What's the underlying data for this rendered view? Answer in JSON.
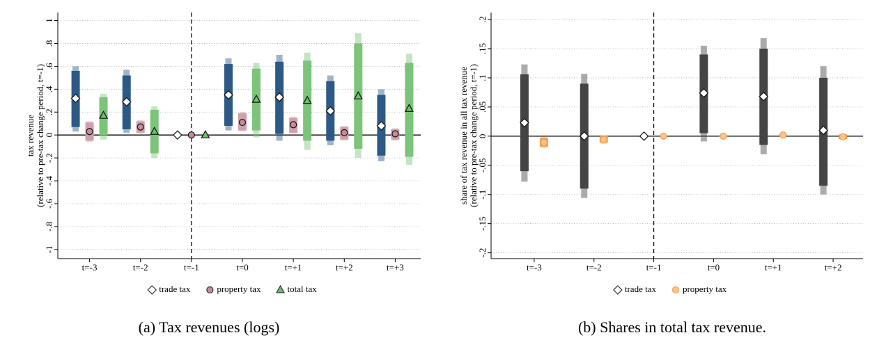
{
  "chart_data": [
    {
      "type": "errorbar",
      "caption": "(a) Tax revenues (logs)",
      "ylabel": [
        "tax revenue",
        "(relative to pre-tax change period, t=-1)"
      ],
      "categories": [
        "t=-3",
        "t=-2",
        "t=-1",
        "t=0",
        "t=+1",
        "t=+2",
        "t=+3"
      ],
      "ylim": [
        -1.08,
        1.07
      ],
      "yticks": [
        {
          "value": -1,
          "label": "-1"
        },
        {
          "value": -0.8,
          "label": "-.8"
        },
        {
          "value": -0.6,
          "label": "-.6"
        },
        {
          "value": -0.4,
          "label": "-.4"
        },
        {
          "value": -0.2,
          "label": "-.2"
        },
        0,
        {
          "value": 0.2,
          "label": ".2"
        },
        {
          "value": 0.4,
          "label": ".4"
        },
        {
          "value": 0.6,
          "label": ".6"
        },
        {
          "value": 0.8,
          "label": ".8"
        },
        1
      ],
      "grid": true,
      "hline": 0,
      "vline_index": 2,
      "series": [
        {
          "name": "trade tax",
          "color": "#2c5985",
          "marker": "diamond",
          "marker_fill": "#ffffff",
          "values": [
            0.32,
            0.29,
            0,
            0.35,
            0.33,
            0.21,
            0.08
          ],
          "ci_inner": [
            [
              0.07,
              0.56
            ],
            [
              0.05,
              0.52
            ],
            null,
            [
              0.08,
              0.62
            ],
            [
              0.01,
              0.64
            ],
            [
              -0.05,
              0.47
            ],
            [
              -0.18,
              0.35
            ]
          ],
          "ci_outer": [
            [
              0.03,
              0.6
            ],
            [
              0.02,
              0.57
            ],
            null,
            [
              0.04,
              0.67
            ],
            [
              -0.05,
              0.7
            ],
            [
              -0.09,
              0.52
            ],
            [
              -0.23,
              0.4
            ]
          ]
        },
        {
          "name": "property tax",
          "color": "#cfa0ab",
          "marker": "circle",
          "marker_fill": "#c48d9a",
          "values": [
            0.03,
            0.07,
            0,
            0.11,
            0.09,
            0.02,
            0.01
          ],
          "ci_inner": [
            [
              -0.05,
              0.11
            ],
            [
              0.02,
              0.12
            ],
            null,
            [
              0.04,
              0.19
            ],
            [
              0.02,
              0.15
            ],
            [
              -0.04,
              0.07
            ],
            [
              -0.04,
              0.05
            ]
          ],
          "ci_outer": [
            [
              -0.06,
              0.12
            ],
            [
              0.01,
              0.13
            ],
            null,
            [
              0.03,
              0.2
            ],
            [
              0.01,
              0.16
            ],
            [
              -0.05,
              0.08
            ],
            [
              -0.05,
              0.06
            ]
          ]
        },
        {
          "name": "total tax",
          "color": "#7cc47a",
          "marker": "triangle",
          "marker_fill": "#6fbf6d",
          "values": [
            0.17,
            0.03,
            0,
            0.31,
            0.3,
            0.34,
            0.23
          ],
          "ci_inner": [
            [
              0.0,
              0.33
            ],
            [
              -0.16,
              0.22
            ],
            null,
            [
              0.04,
              0.58
            ],
            [
              -0.05,
              0.65
            ],
            [
              -0.12,
              0.8
            ],
            [
              -0.19,
              0.63
            ]
          ],
          "ci_outer": [
            [
              -0.04,
              0.36
            ],
            [
              -0.2,
              0.25
            ],
            null,
            [
              -0.02,
              0.63
            ],
            [
              -0.13,
              0.72
            ],
            [
              -0.2,
              0.89
            ],
            [
              -0.26,
              0.71
            ]
          ]
        }
      ]
    },
    {
      "type": "errorbar",
      "caption": "(b) Shares in total tax revenue.",
      "ylabel": [
        "share of tax revenue in all tax revenue",
        "(relative to pre-tax change period, t=-1)"
      ],
      "categories": [
        "t=-3",
        "t=-2",
        "t=-1",
        "t=0",
        "t=+1",
        "t=+2"
      ],
      "ylim": [
        -0.21,
        0.212
      ],
      "yticks": [
        {
          "value": -0.2,
          "label": "-.2"
        },
        {
          "value": -0.15,
          "label": "-.15"
        },
        {
          "value": -0.1,
          "label": "-.1"
        },
        {
          "value": -0.05,
          "label": "-.05"
        },
        0,
        {
          "value": 0.05,
          "label": ".05"
        },
        {
          "value": 0.1,
          "label": ".1"
        },
        {
          "value": 0.15,
          "label": ".15"
        },
        {
          "value": 0.2,
          "label": ".2"
        }
      ],
      "grid": true,
      "hline": 0,
      "vline_index": 2,
      "series": [
        {
          "name": "trade tax",
          "color": "#444444",
          "marker": "diamond",
          "marker_fill": "#ffffff",
          "values": [
            0.023,
            0,
            0,
            0.074,
            0.068,
            0.01
          ],
          "ci_inner": [
            [
              -0.06,
              0.106
            ],
            [
              -0.09,
              0.09
            ],
            null,
            [
              0.005,
              0.14
            ],
            [
              -0.015,
              0.15
            ],
            [
              -0.085,
              0.1
            ]
          ],
          "ci_outer": [
            [
              -0.078,
              0.123
            ],
            [
              -0.106,
              0.107
            ],
            null,
            [
              -0.009,
              0.155
            ],
            [
              -0.031,
              0.168
            ],
            [
              -0.1,
              0.12
            ]
          ]
        },
        {
          "name": "property tax",
          "color": "#f5a04f",
          "marker": "circle",
          "marker_fill": "#fbc48c",
          "values": [
            -0.011,
            -0.006,
            0,
            0.0,
            0.002,
            -0.001
          ],
          "ci_inner": [
            [
              -0.018,
              -0.003
            ],
            [
              -0.011,
              0.0
            ],
            null,
            [
              -0.002,
              0.002
            ],
            [
              0.0,
              0.003
            ],
            [
              -0.005,
              0.003
            ]
          ],
          "ci_outer": [
            [
              -0.02,
              -0.001
            ],
            [
              -0.013,
              0.001
            ],
            null,
            [
              -0.003,
              0.003
            ],
            [
              -0.001,
              0.004
            ],
            [
              -0.006,
              0.004
            ]
          ]
        }
      ]
    }
  ]
}
